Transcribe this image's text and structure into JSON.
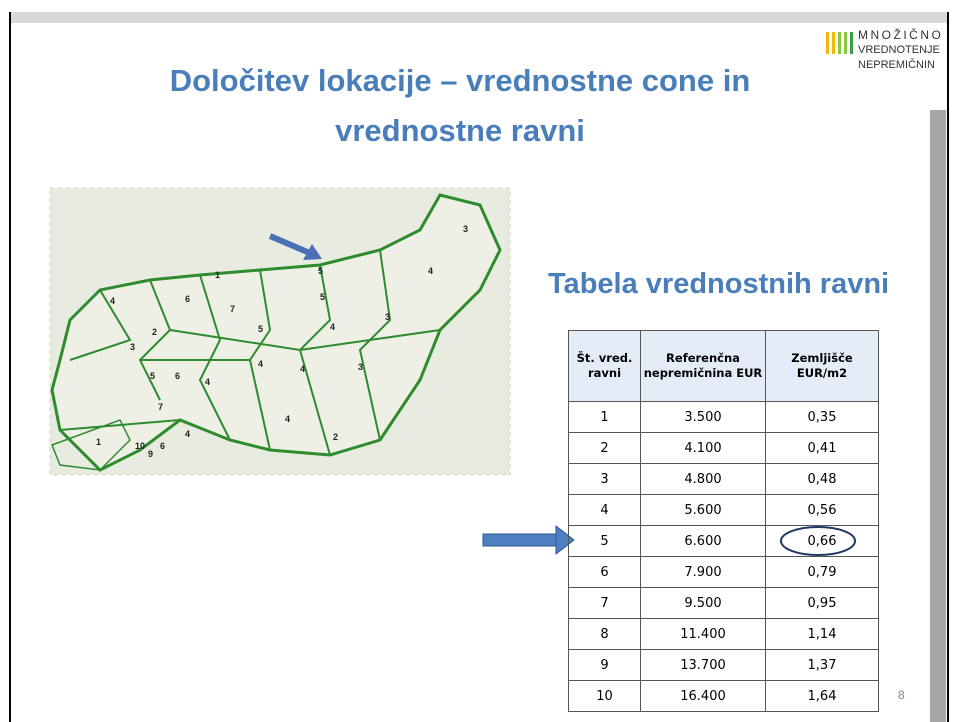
{
  "logo": {
    "lines": [
      "MNOŽIČNO",
      "VREDNOTENJE",
      "NEPREMIČNIN"
    ]
  },
  "title": "Določitev lokacije – vrednostne cone in vrednostne ravni",
  "subtitle": "Tabela vrednostnih ravni",
  "map_labels": [
    "3",
    "4",
    "5",
    "1",
    "5",
    "4",
    "6",
    "7",
    "5",
    "3",
    "4",
    "2",
    "3",
    "4",
    "4",
    "3",
    "5",
    "6",
    "4",
    "7",
    "4",
    "4",
    "2",
    "1",
    "10",
    "6",
    "9"
  ],
  "table": {
    "header": [
      "Št. vred. ravni",
      "Referenčna nepremičnina EUR",
      "Zemljišče EUR/m2"
    ],
    "rows": [
      [
        "1",
        "3.500",
        "0,35"
      ],
      [
        "2",
        "4.100",
        "0,41"
      ],
      [
        "3",
        "4.800",
        "0,48"
      ],
      [
        "4",
        "5.600",
        "0,56"
      ],
      [
        "5",
        "6.600",
        "0,66"
      ],
      [
        "6",
        "7.900",
        "0,79"
      ],
      [
        "7",
        "9.500",
        "0,95"
      ],
      [
        "8",
        "11.400",
        "1,14"
      ],
      [
        "9",
        "13.700",
        "1,37"
      ],
      [
        "10",
        "16.400",
        "1,64"
      ]
    ]
  },
  "page_number": "8"
}
